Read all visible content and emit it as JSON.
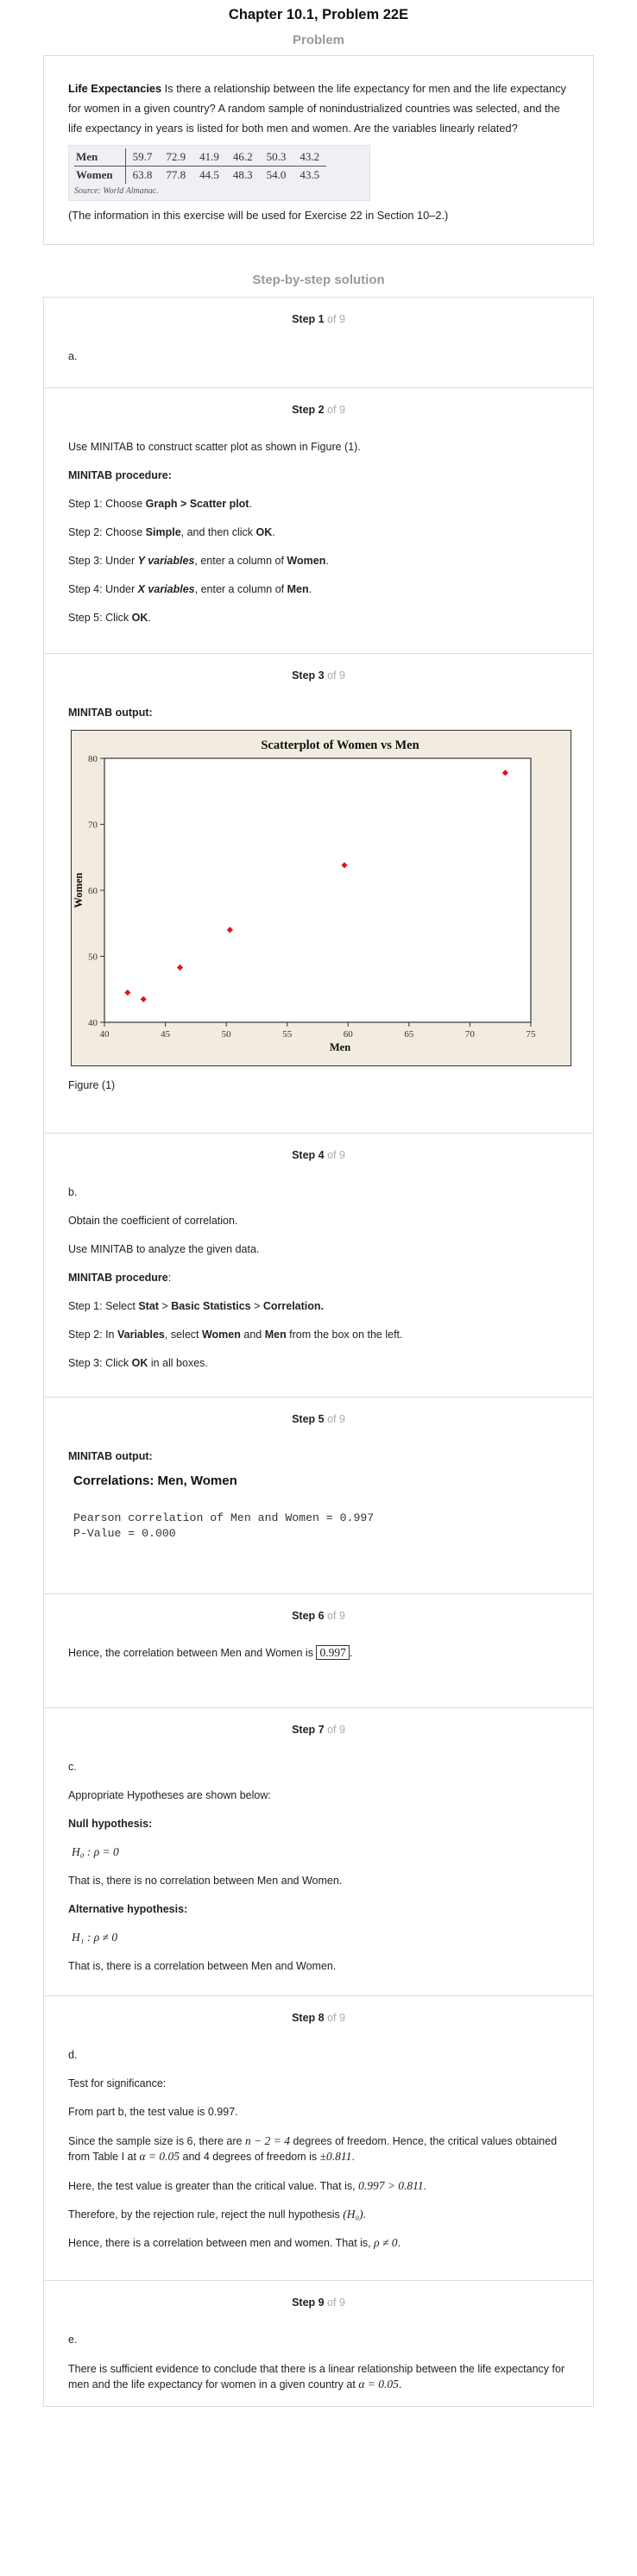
{
  "header": {
    "title": "Chapter 10.1, Problem 22E"
  },
  "problem": {
    "section_label": "Problem",
    "lead": "Life Expectancies",
    "text": " Is there a relationship between the life expectancy for men and the life expectancy for women in a given country? A random sample of nonindustrialized countries was selected, and the life expectancy in years is listed for both men and women. Are the variables linearly related?",
    "table": {
      "rows": [
        {
          "label": "Men",
          "values": [
            "59.7",
            "72.9",
            "41.9",
            "46.2",
            "50.3",
            "43.2"
          ]
        },
        {
          "label": "Women",
          "values": [
            "63.8",
            "77.8",
            "44.5",
            "48.3",
            "54.0",
            "43.5"
          ]
        }
      ],
      "source": "Source: World Almanac."
    },
    "note": "(The information in this exercise will be used for Exercise 22 in Section 10–2.)"
  },
  "solution": {
    "section_label": "Step-by-step solution",
    "step_word": "Step",
    "of_total": "of 9",
    "steps": [
      {
        "num": "1",
        "part": "a."
      },
      {
        "num": "2",
        "intro": "Use MINITAB to construct scatter plot as shown in Figure (1).",
        "procedure_label": "MINITAB procedure:",
        "s1_pre": "Step 1: Choose ",
        "s1_b1": "Graph > Scatter plot",
        "s1_post": ".",
        "s2_pre": "Step 2: Choose ",
        "s2_b1": "Simple",
        "s2_mid": ", and then click ",
        "s2_b2": "OK",
        "s2_post": ".",
        "s3_pre": "Step 3: Under ",
        "s3_b1": "Y variables",
        "s3_mid": ", enter a column of ",
        "s3_b2": "Women",
        "s3_post": ".",
        "s4_pre": "Step 4: Under ",
        "s4_b1": "X variables",
        "s4_mid": ", enter a column of ",
        "s4_b2": "Men",
        "s4_post": ".",
        "s5_pre": "Step 5: Click ",
        "s5_b1": "OK",
        "s5_post": "."
      },
      {
        "num": "3",
        "output_label": "MINITAB output:",
        "figure_caption": "Figure (1)"
      },
      {
        "num": "4",
        "part": "b.",
        "l1": "Obtain the coefficient of correlation.",
        "l2": "Use MINITAB to analyze the given data.",
        "procedure_label": "MINITAB procedure",
        "procedure_colon": ":",
        "s1_pre": "Step 1: Select ",
        "s1_b1": "Stat",
        "s1_mid": " > ",
        "s1_b2": "Basic Statistics",
        "s1_mid2": " > ",
        "s1_b3": "Correlation.",
        "s2_pre": "Step 2: In ",
        "s2_b1": "Variables",
        "s2_mid": ", select ",
        "s2_b2": "Women",
        "s2_mid2": " and ",
        "s2_b3": "Men",
        "s2_post": " from the box on the left.",
        "s3_pre": "Step 3: Click ",
        "s3_b1": "OK",
        "s3_post": " in all boxes."
      },
      {
        "num": "5",
        "output_label": "MINITAB output:",
        "corr_title": "Correlations: Men, Women",
        "pearson_line": "Pearson correlation of Men and Women = 0.997",
        "pvalue_line": "P-Value = 0.000"
      },
      {
        "num": "6",
        "text_pre": "Hence, the correlation between Men and Women is ",
        "value": "0.997",
        "text_post": "."
      },
      {
        "num": "7",
        "part": "c.",
        "intro": "Appropriate Hypotheses are shown below:",
        "null_label": "Null hypothesis:",
        "null_expr": "H₀ : ρ = 0",
        "null_text": "That is, there is no correlation between Men and Women.",
        "alt_label": "Alternative hypothesis:",
        "alt_expr": "H₁ : ρ ≠ 0",
        "alt_text": "That is, there is a correlation between Men and Women."
      },
      {
        "num": "8",
        "part": "d.",
        "l1": "Test for significance:",
        "l2": "From part b, the test value is 0.997.",
        "l3_a": "Since the sample size is 6, there are ",
        "l3_m1": "n − 2 = 4",
        "l3_b": " degrees of freedom. Hence, the critical values obtained from Table I at ",
        "l3_m2": "α = 0.05",
        "l3_c": " and 4 degrees of freedom is ",
        "l3_m3": "±0.811",
        "l3_d": ".",
        "l4_a": "Here, the test value is greater than the critical value. That is, ",
        "l4_m": "0.997 > 0.811",
        "l4_b": ".",
        "l5_a": "Therefore, by the rejection rule, reject the null hypothesis ",
        "l5_m": "(H₀)",
        "l5_b": ".",
        "l6_a": "Hence, there is a correlation between men and women. That is, ",
        "l6_m": "ρ ≠ 0",
        "l6_b": "."
      },
      {
        "num": "9",
        "part": "e.",
        "text": "There is sufficient evidence to conclude that there is a linear relationship between the life expectancy for men and the life expectancy for women in a given country at ",
        "math": "α = 0.05",
        "end": "."
      }
    ]
  },
  "chart_data": {
    "type": "scatter",
    "title": "Scatterplot of Women vs Men",
    "xlabel": "Men",
    "ylabel": "Women",
    "xlim": [
      40,
      75
    ],
    "ylim": [
      40,
      80
    ],
    "xticks": [
      "40",
      "45",
      "50",
      "55",
      "60",
      "65",
      "70",
      "75"
    ],
    "yticks": [
      "40",
      "50",
      "60",
      "70",
      "80"
    ],
    "points": [
      {
        "x": 59.7,
        "y": 63.8
      },
      {
        "x": 72.9,
        "y": 77.8
      },
      {
        "x": 41.9,
        "y": 44.5
      },
      {
        "x": 46.2,
        "y": 48.3
      },
      {
        "x": 50.3,
        "y": 54.0
      },
      {
        "x": 43.2,
        "y": 43.5
      }
    ],
    "point_color": "#e3121b",
    "background": "#f1ecdf",
    "grid": false
  }
}
